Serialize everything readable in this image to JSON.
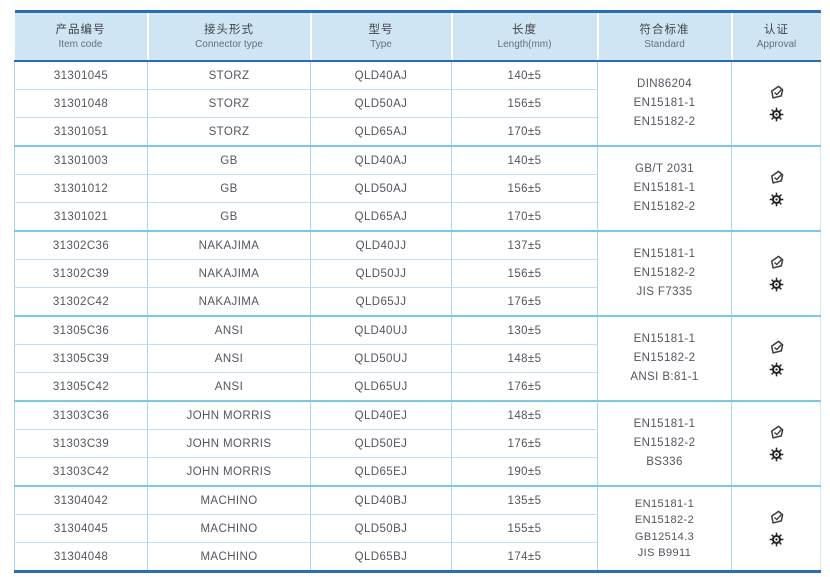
{
  "table": {
    "columns": [
      {
        "zh": "产品编号",
        "en": "Item code"
      },
      {
        "zh": "接头形式",
        "en": "Connector type"
      },
      {
        "zh": "型号",
        "en": "Type"
      },
      {
        "zh": "长度",
        "en": "Length(mm)"
      },
      {
        "zh": "符合标准",
        "en": "Standard"
      },
      {
        "zh": "认证",
        "en": "Approval"
      }
    ],
    "groups": [
      {
        "rows": [
          {
            "item_code": "31301045",
            "connector": "STORZ",
            "type": "QLD40AJ",
            "length": "140±5"
          },
          {
            "item_code": "31301048",
            "connector": "STORZ",
            "type": "QLD50AJ",
            "length": "156±5"
          },
          {
            "item_code": "31301051",
            "connector": "STORZ",
            "type": "QLD65AJ",
            "length": "170±5"
          }
        ],
        "standards": "DIN86204\nEN15181-1\nEN15182-2"
      },
      {
        "rows": [
          {
            "item_code": "31301003",
            "connector": "GB",
            "type": "QLD40AJ",
            "length": "140±5"
          },
          {
            "item_code": "31301012",
            "connector": "GB",
            "type": "QLD50AJ",
            "length": "156±5"
          },
          {
            "item_code": "31301021",
            "connector": "GB",
            "type": "QLD65AJ",
            "length": "170±5"
          }
        ],
        "standards": "GB/T 2031\nEN15181-1\nEN15182-2"
      },
      {
        "rows": [
          {
            "item_code": "31302C36",
            "connector": "NAKAJIMA",
            "type": "QLD40JJ",
            "length": "137±5"
          },
          {
            "item_code": "31302C39",
            "connector": "NAKAJIMA",
            "type": "QLD50JJ",
            "length": "156±5"
          },
          {
            "item_code": "31302C42",
            "connector": "NAKAJIMA",
            "type": "QLD65JJ",
            "length": "176±5"
          }
        ],
        "standards": "EN15181-1\nEN15182-2\nJIS F7335"
      },
      {
        "rows": [
          {
            "item_code": "31305C36",
            "connector": "ANSI",
            "type": "QLD40UJ",
            "length": "130±5"
          },
          {
            "item_code": "31305C39",
            "connector": "ANSI",
            "type": "QLD50UJ",
            "length": "148±5"
          },
          {
            "item_code": "31305C42",
            "connector": "ANSI",
            "type": "QLD65UJ",
            "length": "176±5"
          }
        ],
        "standards": "EN15181-1\nEN15182-2\nANSI B:81-1"
      },
      {
        "rows": [
          {
            "item_code": "31303C36",
            "connector": "JOHN MORRIS",
            "type": "QLD40EJ",
            "length": "148±5"
          },
          {
            "item_code": "31303C39",
            "connector": "JOHN MORRIS",
            "type": "QLD50EJ",
            "length": "176±5"
          },
          {
            "item_code": "31303C42",
            "connector": "JOHN MORRIS",
            "type": "QLD65EJ",
            "length": "190±5"
          }
        ],
        "standards": "EN15181-1\nEN15182-2\nBS336"
      },
      {
        "rows": [
          {
            "item_code": "31304042",
            "connector": "MACHINO",
            "type": "QLD40BJ",
            "length": "135±5"
          },
          {
            "item_code": "31304045",
            "connector": "MACHINO",
            "type": "QLD50BJ",
            "length": "155±5"
          },
          {
            "item_code": "31304048",
            "connector": "MACHINO",
            "type": "QLD65BJ",
            "length": "174±5"
          }
        ],
        "standards": "EN15181-1\nEN15182-2\nGB12514.3\nJIS B9911"
      }
    ],
    "approval_icons": [
      "certification-logo",
      "wheel-mark"
    ],
    "colors": {
      "accent_border": "#2b6cb2",
      "header_bg": "#d0e5f3",
      "grid_line": "#a9d6ec",
      "group_line": "#7fc7e8"
    }
  }
}
